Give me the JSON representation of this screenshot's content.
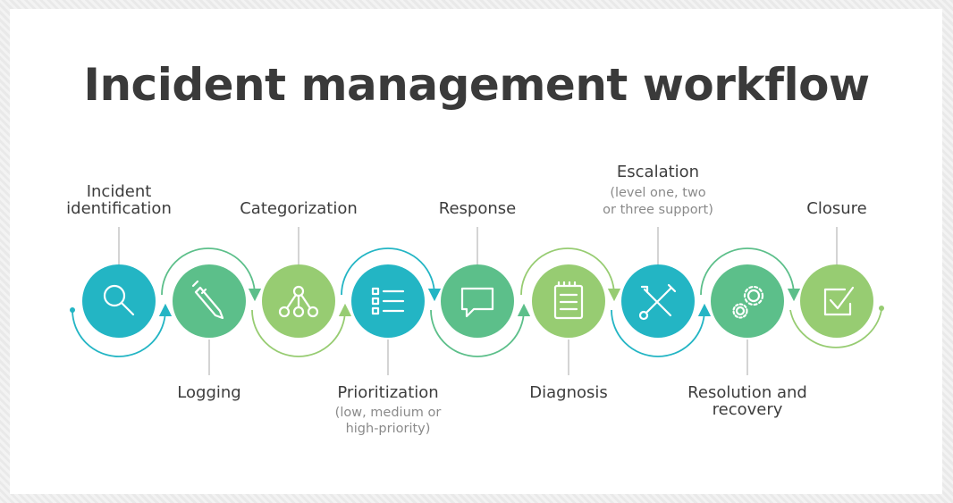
{
  "title": "Incident management workflow",
  "colors": {
    "teal": "#23b5c4",
    "green": "#5cbf8a",
    "lime": "#97cc72",
    "connector_grey": "#bdbdbd",
    "text": "#3d3d3d",
    "subtext": "#8a8a8a"
  },
  "steps": [
    {
      "label_line1": "Incident",
      "label_line2": "identification",
      "icon": "magnifier-icon",
      "color": "teal"
    },
    {
      "label": "Logging",
      "icon": "pen-icon",
      "color": "green"
    },
    {
      "label": "Categorization",
      "icon": "hierarchy-icon",
      "color": "lime"
    },
    {
      "label": "Prioritization",
      "sub_line1": "(low, medium or",
      "sub_line2": "high-priority)",
      "icon": "list-icon",
      "color": "teal"
    },
    {
      "label": "Response",
      "icon": "chat-bubble-icon",
      "color": "green"
    },
    {
      "label": "Diagnosis",
      "icon": "notepad-icon",
      "color": "lime"
    },
    {
      "label": "Escalation",
      "sub_line1": "(level one, two",
      "sub_line2": "or three support)",
      "icon": "tools-icon",
      "color": "teal"
    },
    {
      "label_line1": "Resolution and",
      "label_line2": "recovery",
      "icon": "gears-icon",
      "color": "green"
    },
    {
      "label": "Closure",
      "icon": "checkbox-icon",
      "color": "lime"
    }
  ]
}
